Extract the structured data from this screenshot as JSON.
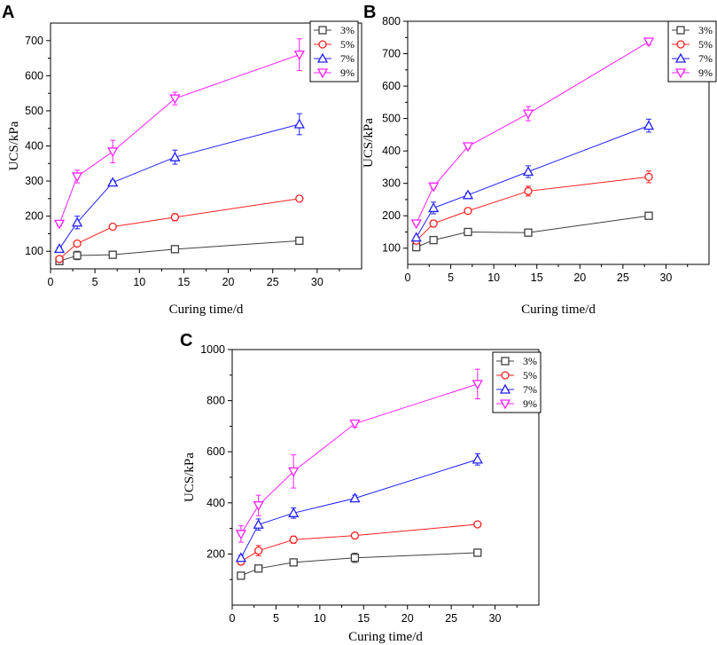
{
  "chart_data": [
    {
      "panel": "A",
      "type": "line",
      "xlabel": "Curing time/d",
      "ylabel": "UCS/kPa",
      "xlim": [
        0,
        35
      ],
      "ylim": [
        50,
        750
      ],
      "xticks": [
        0,
        5,
        10,
        15,
        20,
        25,
        30
      ],
      "yticks": [
        100,
        200,
        300,
        400,
        500,
        600,
        700
      ],
      "x": [
        1,
        3,
        7,
        14,
        28
      ],
      "series": [
        {
          "name": "3%",
          "color": "#404040",
          "marker": "square",
          "values": [
            72,
            88,
            90,
            106,
            130
          ],
          "errors": [
            4,
            12,
            4,
            4,
            3
          ]
        },
        {
          "name": "5%",
          "color": "#ff2020",
          "marker": "circle",
          "values": [
            78,
            122,
            170,
            197,
            250
          ],
          "errors": [
            4,
            5,
            4,
            10,
            8
          ]
        },
        {
          "name": "7%",
          "color": "#2020ff",
          "marker": "triangle-up",
          "values": [
            107,
            182,
            296,
            368,
            462
          ],
          "errors": [
            4,
            18,
            6,
            20,
            30
          ]
        },
        {
          "name": "9%",
          "color": "#ff20ff",
          "marker": "triangle-down",
          "values": [
            178,
            313,
            384,
            535,
            660
          ],
          "errors": [
            6,
            18,
            32,
            18,
            45
          ]
        }
      ]
    },
    {
      "panel": "B",
      "type": "line",
      "xlabel": "Curing time/d",
      "ylabel": "UCS/kPa",
      "xlim": [
        0,
        35
      ],
      "ylim": [
        50,
        800
      ],
      "xticks": [
        0,
        5,
        10,
        15,
        20,
        25,
        30
      ],
      "yticks": [
        100,
        200,
        300,
        400,
        500,
        600,
        700,
        800
      ],
      "x": [
        1,
        3,
        7,
        14,
        28
      ],
      "series": [
        {
          "name": "3%",
          "color": "#404040",
          "marker": "square",
          "values": [
            103,
            125,
            150,
            148,
            200
          ],
          "errors": [
            4,
            10,
            10,
            8,
            4
          ]
        },
        {
          "name": "5%",
          "color": "#ff2020",
          "marker": "circle",
          "values": [
            123,
            176,
            215,
            276,
            320
          ],
          "errors": [
            4,
            10,
            6,
            15,
            18
          ]
        },
        {
          "name": "7%",
          "color": "#2020ff",
          "marker": "triangle-up",
          "values": [
            133,
            224,
            264,
            336,
            478
          ],
          "errors": [
            4,
            18,
            6,
            18,
            20
          ]
        },
        {
          "name": "9%",
          "color": "#ff20ff",
          "marker": "triangle-down",
          "values": [
            176,
            290,
            414,
            515,
            737
          ],
          "errors": [
            4,
            6,
            6,
            22,
            10
          ]
        }
      ]
    },
    {
      "panel": "C",
      "type": "line",
      "xlabel": "Curing time/d",
      "ylabel": "UCS/kPa",
      "xlim": [
        0,
        35
      ],
      "ylim": [
        0,
        1000
      ],
      "xticks": [
        0,
        5,
        10,
        15,
        20,
        25,
        30
      ],
      "yticks": [
        200,
        400,
        600,
        800,
        1000
      ],
      "x": [
        1,
        3,
        7,
        14,
        28
      ],
      "series": [
        {
          "name": "3%",
          "color": "#404040",
          "marker": "square",
          "values": [
            115,
            143,
            167,
            185,
            205
          ],
          "errors": [
            10,
            8,
            6,
            18,
            6
          ]
        },
        {
          "name": "5%",
          "color": "#ff2020",
          "marker": "circle",
          "values": [
            170,
            213,
            256,
            272,
            316
          ],
          "errors": [
            12,
            20,
            14,
            8,
            6
          ]
        },
        {
          "name": "7%",
          "color": "#2020ff",
          "marker": "triangle-up",
          "values": [
            185,
            315,
            360,
            418,
            570
          ],
          "errors": [
            10,
            22,
            20,
            12,
            22
          ]
        },
        {
          "name": "9%",
          "color": "#ff20ff",
          "marker": "triangle-down",
          "values": [
            278,
            390,
            523,
            710,
            865
          ],
          "errors": [
            32,
            40,
            65,
            14,
            58
          ]
        }
      ]
    }
  ]
}
